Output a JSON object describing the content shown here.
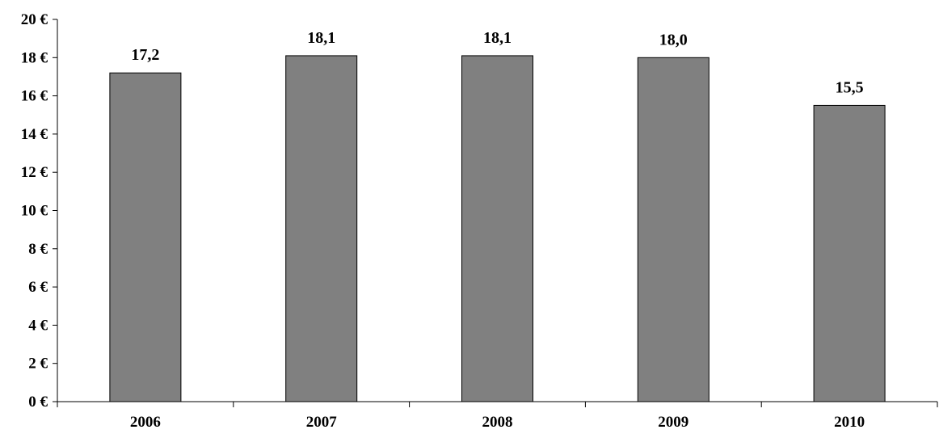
{
  "chart_data": {
    "type": "bar",
    "categories": [
      "2006",
      "2007",
      "2008",
      "2009",
      "2010"
    ],
    "values": [
      17.2,
      18.1,
      18.1,
      18.0,
      15.5
    ],
    "data_labels": [
      "17,2",
      "18,1",
      "18,1",
      "18,0",
      "15,5"
    ],
    "title": "",
    "xlabel": "",
    "ylabel": "",
    "ylim": [
      0,
      20
    ],
    "y_ticks": [
      0,
      2,
      4,
      6,
      8,
      10,
      12,
      14,
      16,
      18,
      20
    ],
    "y_tick_labels": [
      "0 €",
      "2 €",
      "4 €",
      "6 €",
      "8 €",
      "10 €",
      "12 €",
      "14 €",
      "16 €",
      "18 €",
      "20 €"
    ],
    "grid": false,
    "legend": "none",
    "bar_color": "#808080"
  }
}
